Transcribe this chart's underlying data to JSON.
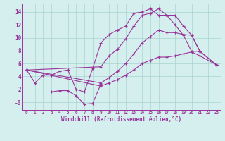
{
  "background_color": "#d4efee",
  "grid_color": "#aad4d0",
  "line_color": "#993399",
  "xlabel": "Windchill (Refroidissement éolien,°C)",
  "xlim": [
    -0.5,
    23.5
  ],
  "ylim": [
    -1.2,
    15.2
  ],
  "yticks": [
    0,
    2,
    4,
    6,
    8,
    10,
    12,
    14
  ],
  "ytick_labels": [
    "-0",
    "2",
    "4",
    "6",
    "8",
    "10",
    "12",
    "14"
  ],
  "curve_top": {
    "x": [
      0,
      1,
      2,
      3,
      4,
      5,
      6,
      7,
      8,
      9,
      10,
      11,
      12,
      13,
      14,
      15,
      16,
      17,
      18,
      19,
      20,
      21
    ],
    "y": [
      5.0,
      3.0,
      4.2,
      4.2,
      4.8,
      5.0,
      2.0,
      1.6,
      5.2,
      9.2,
      10.5,
      11.2,
      11.8,
      13.8,
      14.0,
      14.5,
      13.5,
      13.5,
      12.0,
      10.4,
      7.9,
      7.9
    ]
  },
  "curve_dip": {
    "x": [
      3,
      4,
      5,
      6,
      7,
      8,
      9
    ],
    "y": [
      1.6,
      1.8,
      1.8,
      1.0,
      -0.3,
      -0.2,
      2.8
    ]
  },
  "curve_upper": {
    "x": [
      0,
      9,
      10,
      11,
      12,
      13,
      14,
      15,
      16,
      17,
      18,
      19,
      20,
      21,
      23
    ],
    "y": [
      5.0,
      5.5,
      7.2,
      8.2,
      9.8,
      11.8,
      13.5,
      13.8,
      14.5,
      13.5,
      13.5,
      11.8,
      10.4,
      7.9,
      5.8
    ]
  },
  "curve_mid": {
    "x": [
      0,
      9,
      10,
      11,
      12,
      13,
      14,
      15,
      16,
      17,
      18,
      19,
      20,
      21,
      23
    ],
    "y": [
      5.0,
      3.0,
      3.8,
      4.8,
      6.0,
      7.5,
      9.2,
      10.2,
      11.2,
      10.8,
      10.8,
      10.5,
      10.4,
      7.9,
      5.8
    ]
  },
  "curve_bot": {
    "x": [
      0,
      9,
      10,
      11,
      12,
      13,
      14,
      15,
      16,
      17,
      18,
      19,
      20,
      21,
      23
    ],
    "y": [
      5.0,
      2.5,
      3.0,
      3.5,
      4.2,
      5.0,
      6.0,
      6.5,
      7.0,
      7.0,
      7.2,
      7.5,
      7.8,
      7.2,
      5.8
    ]
  }
}
